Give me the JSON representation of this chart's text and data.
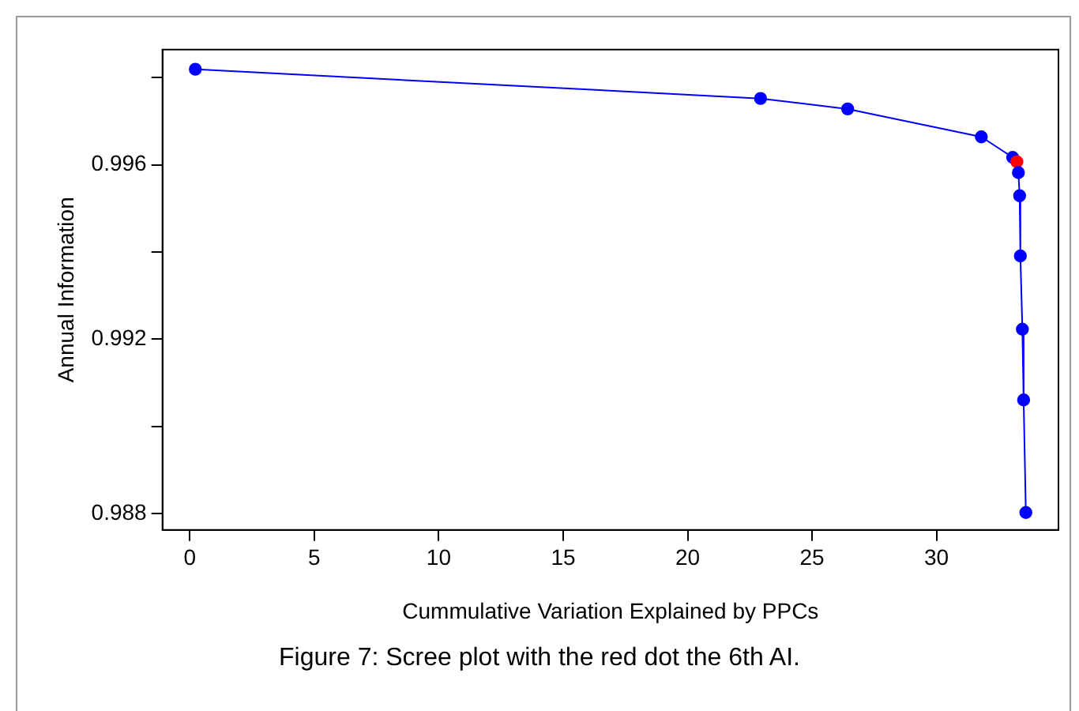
{
  "chart_data": {
    "type": "line",
    "xlabel": "Cummulative Variation Explained by PPCs",
    "ylabel": "Annual Information",
    "annotations": [
      "Figure 7: Scree plot with the red dot the 6th AI."
    ],
    "x": [
      0.22,
      22.93,
      26.43,
      31.8,
      33.06,
      33.23,
      33.29,
      33.34,
      33.37,
      33.45,
      33.5,
      33.59
    ],
    "series": [
      {
        "color": "#0000ff",
        "colors": [
          "#0000ff",
          "#0000ff",
          "#0000ff",
          "#0000ff",
          "#0000ff",
          "#ff0000",
          "#0000ff",
          "#0000ff",
          "#0000ff",
          "#0000ff",
          "#0000ff",
          "#0000ff"
        ],
        "values": [
          0.99819,
          0.99752,
          0.99728,
          0.99664,
          0.99617,
          0.99607,
          0.99582,
          0.99529,
          0.99391,
          0.99223,
          0.99061,
          0.98803
        ]
      }
    ],
    "xlim": [
      -1.1,
      34.9
    ],
    "ylim": [
      0.98763,
      0.99864
    ],
    "xticks": [
      0,
      5,
      10,
      15,
      20,
      25,
      30
    ],
    "yticks": [
      0.988,
      {
        "value": 0.99,
        "label": null
      },
      0.992,
      {
        "value": 0.994,
        "label": null
      },
      0.996,
      {
        "value": 0.998,
        "label": null
      }
    ],
    "marker": "circle",
    "line_style": "solid",
    "grid": false,
    "legend": false
  }
}
